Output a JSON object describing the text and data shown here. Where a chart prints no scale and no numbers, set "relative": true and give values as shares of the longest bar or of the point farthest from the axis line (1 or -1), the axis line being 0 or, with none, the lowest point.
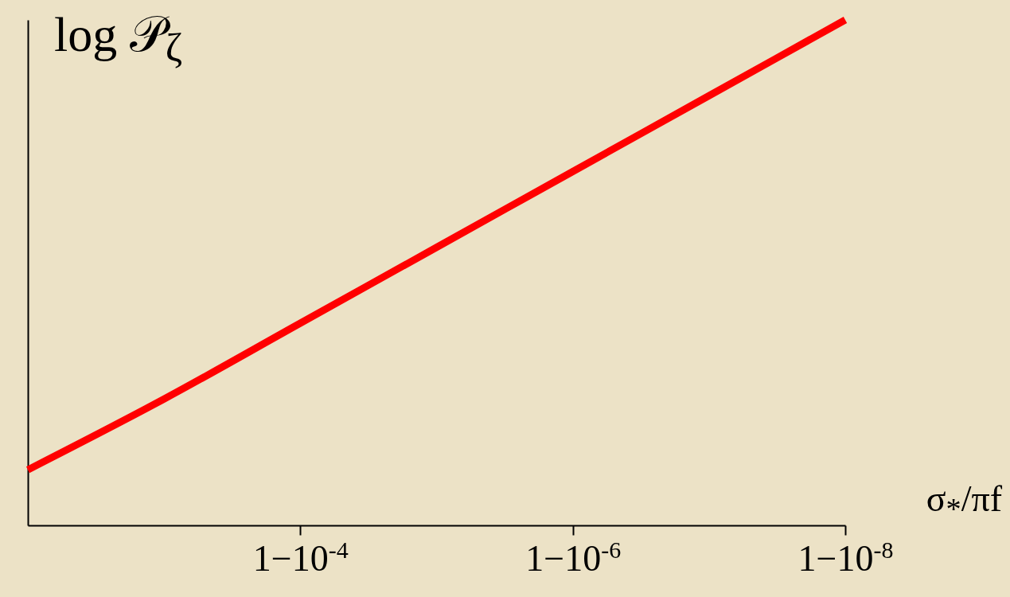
{
  "chart_data": {
    "type": "line",
    "relative": true,
    "ylabel": "log 𝒫$_{ζ}$",
    "xlabel": "σ$_{*}$/πf",
    "categories": [
      null,
      null,
      "1−10$^{-4}$",
      null,
      "1−10$^{-6}$",
      null,
      "1−10$^{-8}$"
    ],
    "series": [
      {
        "color": "#ff0000",
        "values": [
          0.11,
          0.25,
          0.4,
          0.55,
          0.7,
          0.85,
          1.0
        ]
      }
    ],
    "grid": false,
    "marker": "none",
    "line_style": "solid"
  }
}
